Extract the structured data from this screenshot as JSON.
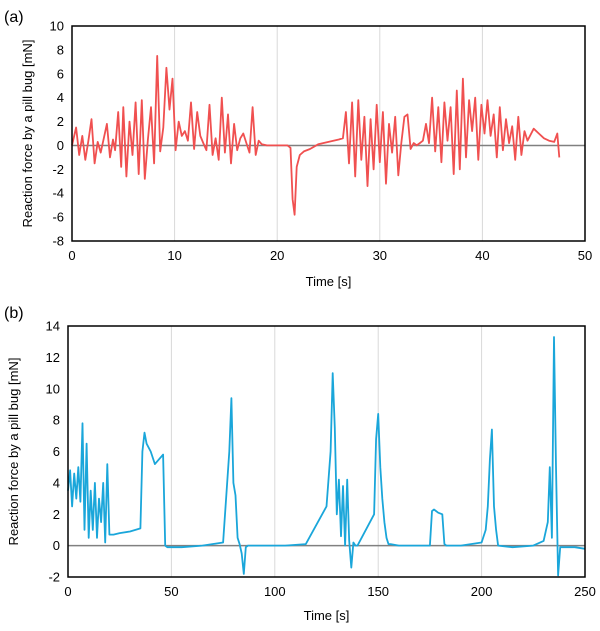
{
  "chart_data": [
    {
      "type": "line",
      "panel_label": "(a)",
      "xlabel": "Time [s]",
      "ylabel": "Reaction force by a pill bug [mN]",
      "xlim": [
        0,
        50
      ],
      "ylim": [
        -8,
        10
      ],
      "xticks": [
        0,
        10,
        20,
        30,
        40,
        50
      ],
      "yticks": [
        -8,
        -6,
        -4,
        -2,
        0,
        2,
        4,
        6,
        8,
        10
      ],
      "grid": "vertical",
      "series": [
        {
          "color": "#f05050",
          "x": [
            0,
            0.4,
            0.7,
            1.0,
            1.3,
            1.6,
            1.9,
            2.2,
            2.5,
            2.8,
            3.1,
            3.4,
            3.7,
            4.0,
            4.2,
            4.5,
            4.8,
            5.0,
            5.3,
            5.6,
            5.9,
            6.2,
            6.5,
            6.8,
            7.1,
            7.4,
            7.7,
            8.0,
            8.3,
            8.6,
            8.9,
            9.2,
            9.5,
            9.8,
            10.1,
            10.4,
            10.7,
            11.0,
            11.3,
            11.6,
            11.9,
            12.2,
            12.5,
            12.8,
            13.1,
            13.4,
            13.7,
            14.0,
            14.3,
            14.6,
            14.9,
            15.2,
            15.5,
            15.8,
            16.1,
            16.4,
            16.7,
            17.0,
            17.3,
            17.6,
            17.9,
            18.2,
            18.5,
            19.0,
            20.0,
            21.0,
            21.3,
            21.5,
            21.7,
            21.9,
            22.2,
            22.6,
            23.2,
            24.0,
            25.0,
            26.0,
            26.4,
            26.7,
            27.0,
            27.3,
            27.6,
            27.9,
            28.2,
            28.5,
            28.8,
            29.1,
            29.4,
            29.7,
            30.0,
            30.3,
            30.6,
            30.9,
            31.2,
            31.5,
            31.8,
            32.1,
            32.4,
            32.7,
            33.0,
            33.3,
            33.6,
            33.9,
            34.2,
            34.5,
            34.8,
            35.1,
            35.4,
            35.7,
            36.0,
            36.3,
            36.6,
            36.9,
            37.2,
            37.5,
            37.8,
            38.1,
            38.4,
            38.7,
            39.0,
            39.3,
            39.6,
            39.9,
            40.2,
            40.5,
            40.8,
            41.1,
            41.4,
            41.7,
            42.0,
            42.3,
            42.6,
            42.9,
            43.2,
            43.5,
            43.8,
            44.1,
            44.4,
            45.0,
            45.5,
            46.0,
            46.5,
            47.0,
            47.3,
            47.5
          ],
          "y": [
            0,
            1.5,
            -0.8,
            0.8,
            -1.2,
            0.4,
            2.2,
            -1.5,
            0.3,
            -0.6,
            0.6,
            1.8,
            -1.0,
            0.5,
            -0.4,
            2.8,
            -1.8,
            3.2,
            -2.6,
            2.0,
            -0.8,
            3.6,
            -2.4,
            3.8,
            -2.8,
            0.5,
            3.2,
            -1.5,
            7.5,
            -0.5,
            1.5,
            6.5,
            3.0,
            5.6,
            -0.4,
            2.0,
            0.8,
            1.2,
            0.4,
            3.6,
            -0.3,
            2.8,
            0.8,
            0.2,
            -0.4,
            3.4,
            -0.8,
            0.6,
            -1.2,
            4.0,
            -0.6,
            2.6,
            -1.5,
            1.8,
            -0.4,
            0.6,
            1.0,
            0.2,
            -0.6,
            3.2,
            -0.8,
            0.4,
            0.1,
            0,
            0,
            0,
            -0.2,
            -4.5,
            -5.8,
            -1.8,
            -0.8,
            -0.5,
            -0.3,
            0.1,
            0.3,
            0.5,
            0.6,
            2.8,
            -1.5,
            3.6,
            -2.6,
            3.8,
            -1.2,
            2.4,
            -3.4,
            2.2,
            -2.0,
            3.4,
            -1.4,
            2.8,
            -3.2,
            1.8,
            -0.6,
            2.4,
            -2.5,
            0.2,
            2.4,
            2.6,
            -0.3,
            0.2,
            0,
            0.2,
            0.4,
            1.8,
            0.2,
            4.0,
            -0.5,
            3.2,
            -1.4,
            3.6,
            0.4,
            3.2,
            -2.4,
            4.6,
            -2.0,
            5.6,
            -1.0,
            3.8,
            1.2,
            4.0,
            -1.2,
            3.4,
            1.0,
            3.8,
            0.8,
            2.6,
            -1.0,
            3.2,
            -0.4,
            2.2,
            0.2,
            1.6,
            -1.2,
            2.4,
            -0.8,
            1.2,
            0.4,
            1.4,
            1.0,
            0.6,
            0.4,
            0.3,
            1.0,
            -1.0
          ]
        }
      ]
    },
    {
      "type": "line",
      "panel_label": "(b)",
      "xlabel": "Time [s]",
      "ylabel": "Reaction force by a pill bug [mN]",
      "xlim": [
        0,
        250
      ],
      "ylim": [
        -2,
        14
      ],
      "xticks": [
        0,
        50,
        100,
        150,
        200,
        250
      ],
      "yticks": [
        -2,
        0,
        2,
        4,
        6,
        8,
        10,
        12,
        14
      ],
      "grid": "vertical",
      "series": [
        {
          "color": "#1aa6da",
          "x": [
            0,
            1,
            2,
            3,
            4,
            5,
            6,
            7,
            8,
            9,
            10,
            11,
            12,
            13,
            14,
            15,
            16,
            17,
            18,
            19,
            20,
            22,
            25,
            30,
            35,
            36,
            37,
            38,
            40,
            42,
            44,
            46,
            47,
            48,
            55,
            65,
            75,
            78,
            79,
            80,
            81,
            82,
            83,
            84,
            85,
            86,
            87,
            95,
            105,
            115,
            125,
            127,
            128,
            129,
            130,
            131,
            132,
            133,
            134,
            135,
            136,
            137,
            138,
            139,
            140,
            148,
            149,
            150,
            151,
            152,
            153,
            154,
            155,
            156,
            160,
            170,
            175,
            176,
            177,
            179,
            181,
            182,
            183,
            190,
            200,
            202,
            203,
            204,
            205,
            206,
            207,
            208,
            215,
            225,
            230,
            232,
            233,
            234,
            235,
            236,
            237,
            238,
            245,
            250
          ],
          "y": [
            3.5,
            4.8,
            2.5,
            4.6,
            3.0,
            5.0,
            2.8,
            7.8,
            1.0,
            6.5,
            0.5,
            3.5,
            1.0,
            4.0,
            0.5,
            3.0,
            1.5,
            4.0,
            0.2,
            5.2,
            0.7,
            0.7,
            0.8,
            0.9,
            1.1,
            6.0,
            7.2,
            6.5,
            6.0,
            5.2,
            5.5,
            5.8,
            0.0,
            -0.1,
            -0.1,
            0.0,
            0.2,
            6.0,
            9.4,
            4.0,
            3.2,
            0.5,
            0.1,
            -0.5,
            -1.8,
            -0.1,
            0.0,
            0.0,
            0.0,
            0.1,
            2.5,
            6.0,
            11.0,
            7.5,
            2.0,
            4.2,
            0.6,
            3.8,
            0.0,
            4.2,
            0.3,
            -1.4,
            0.2,
            0.0,
            0.0,
            2.0,
            6.8,
            8.4,
            5.0,
            3.0,
            1.5,
            0.5,
            0.1,
            0.1,
            0.0,
            0.0,
            0.0,
            2.2,
            2.3,
            2.1,
            2.0,
            0.1,
            0.0,
            0.0,
            0.2,
            1.0,
            2.5,
            5.5,
            7.4,
            2.5,
            1.0,
            0.0,
            -0.1,
            0.0,
            0.3,
            1.5,
            5.0,
            0.5,
            13.3,
            5.0,
            -1.9,
            -0.1,
            -0.1,
            -0.2
          ]
        }
      ]
    }
  ]
}
